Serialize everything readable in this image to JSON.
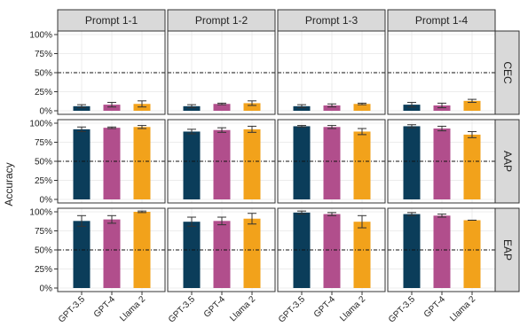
{
  "chart_data": {
    "type": "bar",
    "ylabel": "Accuracy",
    "ylim": [
      0,
      1
    ],
    "yticks": [
      "0%",
      "25%",
      "50%",
      "75%",
      "100%"
    ],
    "reference_line": 0.5,
    "grid": true,
    "columns": [
      "Prompt 1-1",
      "Prompt 1-2",
      "Prompt 1-3",
      "Prompt 1-4"
    ],
    "rows": [
      "CEC",
      "AAP",
      "EAP"
    ],
    "categories": [
      "GPT-3.5",
      "GPT-4",
      "Llama 2"
    ],
    "colors": [
      "#0b3d5a",
      "#b14e8c",
      "#f2a21b"
    ],
    "panels": [
      {
        "row": "CEC",
        "column": "Prompt 1-1",
        "values": [
          0.06,
          0.08,
          0.09
        ],
        "errors": [
          0.02,
          0.03,
          0.04
        ]
      },
      {
        "row": "CEC",
        "column": "Prompt 1-2",
        "values": [
          0.06,
          0.09,
          0.1
        ],
        "errors": [
          0.02,
          0.01,
          0.03
        ]
      },
      {
        "row": "CEC",
        "column": "Prompt 1-3",
        "values": [
          0.06,
          0.07,
          0.09
        ],
        "errors": [
          0.02,
          0.02,
          0.01
        ]
      },
      {
        "row": "CEC",
        "column": "Prompt 1-4",
        "values": [
          0.08,
          0.07,
          0.13
        ],
        "errors": [
          0.03,
          0.03,
          0.02
        ]
      },
      {
        "row": "AAP",
        "column": "Prompt 1-1",
        "values": [
          0.92,
          0.94,
          0.95
        ],
        "errors": [
          0.03,
          0.01,
          0.02
        ]
      },
      {
        "row": "AAP",
        "column": "Prompt 1-2",
        "values": [
          0.89,
          0.91,
          0.92
        ],
        "errors": [
          0.03,
          0.03,
          0.04
        ]
      },
      {
        "row": "AAP",
        "column": "Prompt 1-3",
        "values": [
          0.96,
          0.95,
          0.89
        ],
        "errors": [
          0.01,
          0.02,
          0.04
        ]
      },
      {
        "row": "AAP",
        "column": "Prompt 1-4",
        "values": [
          0.96,
          0.93,
          0.85
        ],
        "errors": [
          0.02,
          0.03,
          0.04
        ]
      },
      {
        "row": "EAP",
        "column": "Prompt 1-1",
        "values": [
          0.88,
          0.9,
          1.0
        ],
        "errors": [
          0.07,
          0.05,
          0.01
        ]
      },
      {
        "row": "EAP",
        "column": "Prompt 1-2",
        "values": [
          0.87,
          0.88,
          0.91
        ],
        "errors": [
          0.06,
          0.05,
          0.07
        ]
      },
      {
        "row": "EAP",
        "column": "Prompt 1-3",
        "values": [
          0.99,
          0.97,
          0.87
        ],
        "errors": [
          0.02,
          0.02,
          0.08
        ]
      },
      {
        "row": "EAP",
        "column": "Prompt 1-4",
        "values": [
          0.97,
          0.95,
          0.89
        ],
        "errors": [
          0.02,
          0.02,
          0.0
        ]
      }
    ]
  }
}
